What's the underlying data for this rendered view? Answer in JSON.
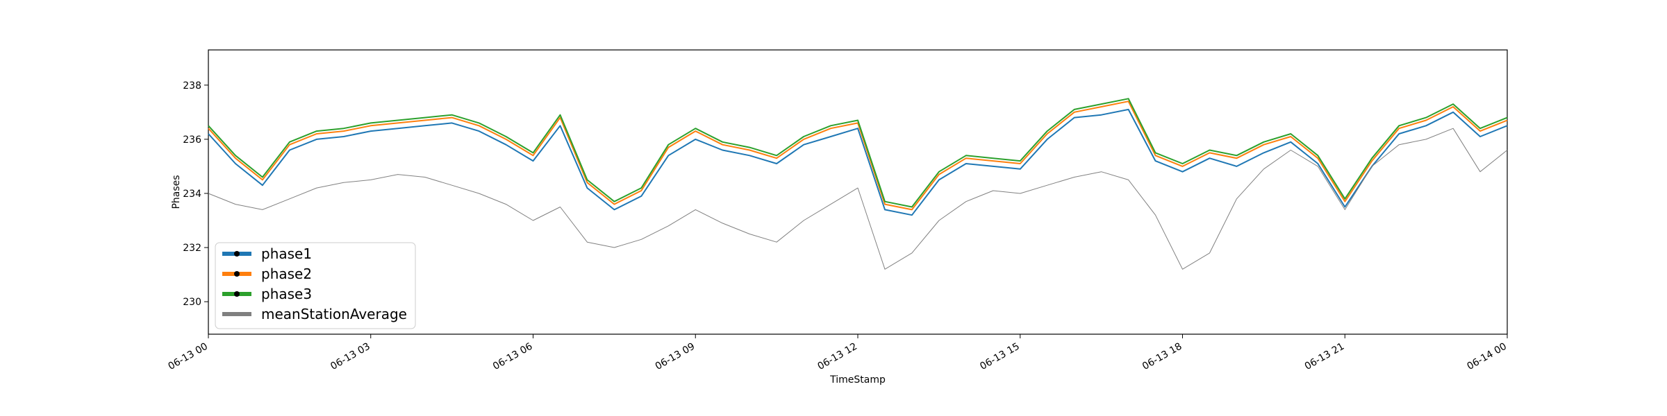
{
  "chart_data": {
    "type": "line",
    "xlabel": "TimeStamp",
    "ylabel": "Phases",
    "xlim": [
      "06-13 00",
      "06-14 00"
    ],
    "ylim": [
      228.8,
      239.3
    ],
    "x_ticks": [
      "06-13 00",
      "06-13 03",
      "06-13 06",
      "06-13 09",
      "06-13 12",
      "06-13 15",
      "06-13 18",
      "06-13 21",
      "06-14 00"
    ],
    "y_ticks": [
      230,
      232,
      234,
      236,
      238
    ],
    "grid": false,
    "legend_position": "lower-left",
    "x_hours": [
      0.0,
      0.5,
      1.0,
      1.5,
      2.0,
      2.5,
      3.0,
      3.5,
      4.0,
      4.5,
      5.0,
      5.5,
      6.0,
      6.5,
      7.0,
      7.5,
      8.0,
      8.5,
      9.0,
      9.5,
      10.0,
      10.5,
      11.0,
      11.5,
      12.0,
      12.5,
      13.0,
      13.5,
      14.0,
      14.5,
      15.0,
      15.5,
      16.0,
      16.5,
      17.0,
      17.5,
      18.0,
      18.5,
      19.0,
      19.5,
      20.0,
      20.5,
      21.0,
      21.5,
      22.0,
      22.5,
      23.0,
      23.5,
      24.0
    ],
    "series": [
      {
        "name": "phase1",
        "color": "#1f77b4",
        "marker": true,
        "values": [
          236.2,
          235.1,
          234.3,
          235.6,
          236.0,
          236.1,
          236.3,
          236.4,
          236.5,
          236.6,
          236.3,
          235.8,
          235.2,
          236.5,
          234.2,
          233.4,
          233.9,
          235.4,
          236.0,
          235.6,
          235.4,
          235.1,
          235.8,
          236.1,
          236.4,
          233.4,
          233.2,
          234.5,
          235.1,
          235.0,
          234.9,
          236.0,
          236.8,
          236.9,
          237.1,
          235.2,
          234.8,
          235.3,
          235.0,
          235.5,
          235.9,
          235.1,
          233.5,
          235.0,
          236.2,
          236.5,
          237.0,
          236.1,
          236.5
        ]
      },
      {
        "name": "phase2",
        "color": "#ff7f0e",
        "marker": true,
        "values": [
          236.4,
          235.3,
          234.5,
          235.8,
          236.2,
          236.3,
          236.5,
          236.6,
          236.7,
          236.8,
          236.5,
          236.0,
          235.4,
          236.8,
          234.4,
          233.6,
          234.1,
          235.7,
          236.3,
          235.8,
          235.6,
          235.3,
          236.0,
          236.4,
          236.6,
          233.6,
          233.4,
          234.7,
          235.3,
          235.2,
          235.1,
          236.2,
          237.0,
          237.2,
          237.4,
          235.4,
          235.0,
          235.5,
          235.3,
          235.8,
          236.1,
          235.3,
          233.7,
          235.2,
          236.4,
          236.7,
          237.2,
          236.3,
          236.7
        ]
      },
      {
        "name": "phase3",
        "color": "#2ca02c",
        "marker": true,
        "values": [
          236.5,
          235.4,
          234.6,
          235.9,
          236.3,
          236.4,
          236.6,
          236.7,
          236.8,
          236.9,
          236.6,
          236.1,
          235.5,
          236.9,
          234.5,
          233.7,
          234.2,
          235.8,
          236.4,
          235.9,
          235.7,
          235.4,
          236.1,
          236.5,
          236.7,
          233.7,
          233.5,
          234.8,
          235.4,
          235.3,
          235.2,
          236.3,
          237.1,
          237.3,
          237.5,
          235.5,
          235.1,
          235.6,
          235.4,
          235.9,
          236.2,
          235.4,
          233.8,
          235.3,
          236.5,
          236.8,
          237.3,
          236.4,
          236.8
        ]
      },
      {
        "name": "meanStationAverage",
        "color": "#808080",
        "marker": false,
        "values": [
          234.0,
          233.6,
          233.4,
          233.8,
          234.2,
          234.4,
          234.5,
          234.7,
          234.6,
          234.3,
          234.0,
          233.6,
          233.0,
          233.5,
          232.2,
          232.0,
          232.3,
          232.8,
          233.4,
          232.9,
          232.5,
          232.2,
          233.0,
          233.6,
          234.2,
          231.2,
          231.8,
          233.0,
          233.7,
          234.1,
          234.0,
          234.3,
          234.6,
          234.8,
          234.5,
          233.2,
          231.2,
          231.8,
          233.8,
          234.9,
          235.6,
          235.0,
          233.4,
          235.0,
          235.8,
          236.0,
          236.4,
          234.8,
          235.6
        ]
      }
    ]
  },
  "legend": [
    {
      "label": "phase1",
      "color": "#1f77b4",
      "marker": true
    },
    {
      "label": "phase2",
      "color": "#ff7f0e",
      "marker": true
    },
    {
      "label": "phase3",
      "color": "#2ca02c",
      "marker": true
    },
    {
      "label": "meanStationAverage",
      "color": "#808080",
      "marker": false
    }
  ]
}
